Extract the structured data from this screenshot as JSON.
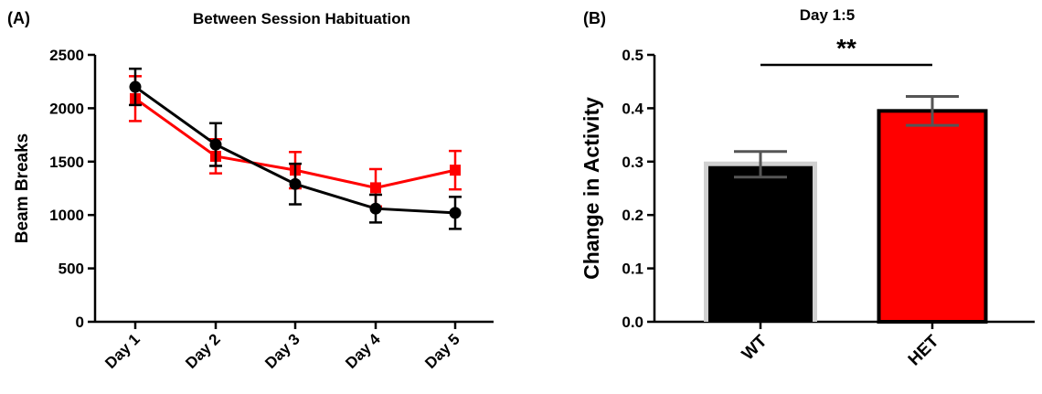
{
  "chart_data": [
    {
      "type": "line",
      "panel_label": "(A)",
      "title": "Between Session Habituation",
      "xlabel": "",
      "ylabel": "Beam Breaks",
      "categories": [
        "Day 1",
        "Day 2",
        "Day 3",
        "Day 4",
        "Day 5"
      ],
      "yticks": [
        "0",
        "500",
        "1000",
        "1500",
        "2000",
        "2500"
      ],
      "ylim": [
        0,
        2500
      ],
      "grid": false,
      "series": [
        {
          "color": "#000000",
          "marker": "circle",
          "values": [
            2200,
            1660,
            1290,
            1060,
            1020
          ],
          "errors": [
            170,
            200,
            190,
            130,
            150
          ]
        },
        {
          "color": "#ff0000",
          "marker": "square",
          "values": [
            2090,
            1550,
            1420,
            1255,
            1420
          ],
          "errors": [
            210,
            160,
            170,
            175,
            180
          ]
        }
      ]
    },
    {
      "type": "bar",
      "panel_label": "(B)",
      "title": "Day 1:5",
      "xlabel": "",
      "ylabel": "Change in Activity",
      "categories": [
        "WT",
        "HET"
      ],
      "values": [
        0.295,
        0.395
      ],
      "errors": [
        0.024,
        0.027
      ],
      "colors": [
        "#000000",
        "#ff0000"
      ],
      "yticks": [
        "0.0",
        "0.1",
        "0.2",
        "0.3",
        "0.4",
        "0.5"
      ],
      "ylim": [
        0,
        0.5
      ],
      "significance": "**",
      "grid": false
    }
  ]
}
